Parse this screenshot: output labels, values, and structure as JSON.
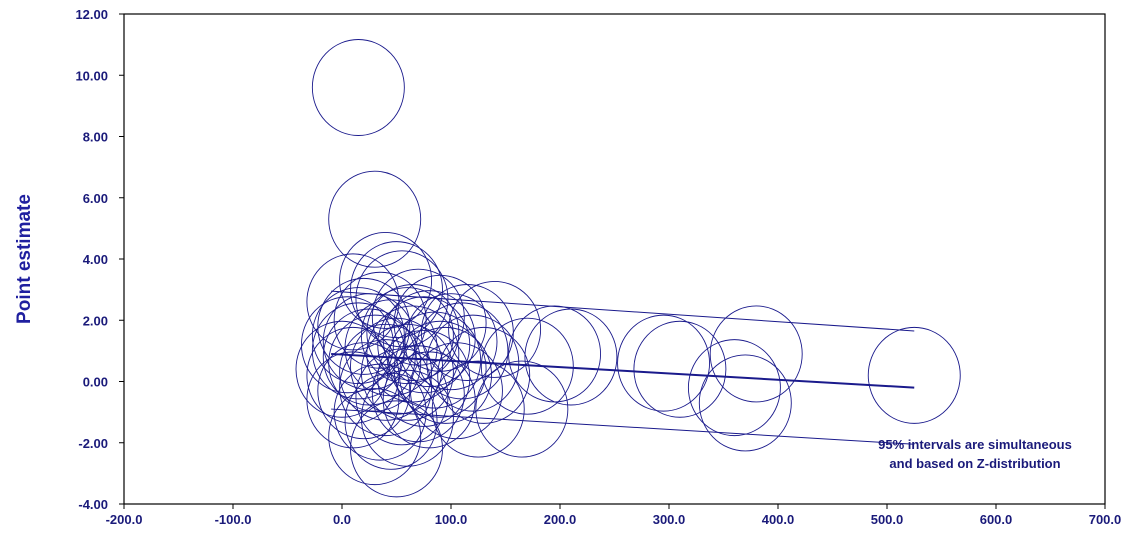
{
  "chart_data": {
    "type": "scatter",
    "title": "",
    "xlabel": "",
    "ylabel": "Point estimate",
    "xlim": [
      -200,
      700
    ],
    "ylim": [
      -4,
      12
    ],
    "x_ticks": [
      "-200.0",
      "-100.0",
      "0.0",
      "100.0",
      "200.0",
      "300.0",
      "400.0",
      "500.0",
      "600.0",
      "700.0"
    ],
    "y_ticks": [
      "-4.00",
      "-2.00",
      "0.00",
      "2.00",
      "4.00",
      "6.00",
      "8.00",
      "10.00",
      "12.00"
    ],
    "grid": false,
    "legend": "none",
    "colors": {
      "marker": "#1a1a8c",
      "line": "#1a1a8c",
      "text": "#1a1a7a"
    },
    "regression": {
      "fit": [
        [
          -10,
          0.9
        ],
        [
          525,
          -0.2
        ]
      ],
      "upper": [
        [
          -10,
          2.95
        ],
        [
          525,
          1.65
        ]
      ],
      "lower": [
        [
          -10,
          -0.9
        ],
        [
          525,
          -2.05
        ]
      ]
    },
    "annotation": [
      "95% intervals are simultaneous",
      "and based on Z-distribution"
    ],
    "points": [
      [
        15,
        9.6
      ],
      [
        30,
        5.3
      ],
      [
        40,
        3.3
      ],
      [
        10,
        2.6
      ],
      [
        50,
        3.0
      ],
      [
        55,
        2.7
      ],
      [
        20,
        1.8
      ],
      [
        35,
        2.0
      ],
      [
        60,
        1.5
      ],
      [
        70,
        2.1
      ],
      [
        80,
        1.4
      ],
      [
        90,
        1.9
      ],
      [
        5,
        1.2
      ],
      [
        15,
        1.0
      ],
      [
        25,
        0.8
      ],
      [
        45,
        1.1
      ],
      [
        65,
        0.9
      ],
      [
        75,
        1.2
      ],
      [
        0,
        0.4
      ],
      [
        10,
        0.2
      ],
      [
        30,
        0.6
      ],
      [
        50,
        0.5
      ],
      [
        60,
        0.3
      ],
      [
        85,
        0.7
      ],
      [
        20,
        -0.3
      ],
      [
        40,
        -0.2
      ],
      [
        55,
        -0.5
      ],
      [
        70,
        -0.4
      ],
      [
        95,
        0.2
      ],
      [
        35,
        -1.0
      ],
      [
        45,
        -1.3
      ],
      [
        30,
        -1.8
      ],
      [
        50,
        -2.2
      ],
      [
        15,
        1.5
      ],
      [
        25,
        1.3
      ],
      [
        40,
        0.3
      ],
      [
        65,
        1.6
      ],
      [
        75,
        0.1
      ],
      [
        100,
        1.3
      ],
      [
        110,
        1.0
      ],
      [
        120,
        0.6
      ],
      [
        130,
        0.2
      ],
      [
        140,
        1.7
      ],
      [
        105,
        -0.3
      ],
      [
        125,
        -0.9
      ],
      [
        165,
        -0.9
      ],
      [
        195,
        0.9
      ],
      [
        210,
        0.8
      ],
      [
        170,
        0.5
      ],
      [
        295,
        0.6
      ],
      [
        310,
        0.4
      ],
      [
        380,
        0.9
      ],
      [
        360,
        -0.2
      ],
      [
        370,
        -0.7
      ],
      [
        525,
        0.2
      ],
      [
        80,
        -0.6
      ],
      [
        10,
        -0.6
      ],
      [
        60,
        -1.2
      ],
      [
        90,
        0.4
      ],
      [
        115,
        1.6
      ]
    ]
  }
}
